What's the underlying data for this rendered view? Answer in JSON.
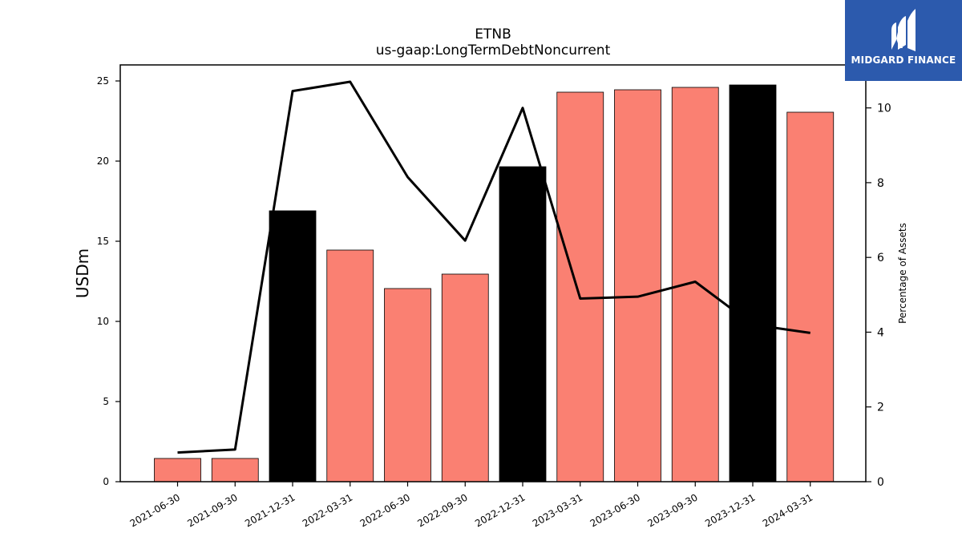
{
  "chart_data": {
    "type": "bar",
    "title": "ETNB",
    "subtitle": "us-gaap:LongTermDebtNoncurrent",
    "ylabel": "USDm",
    "y2label": "Percentage of Assets",
    "categories": [
      "2021-06-30",
      "2021-09-30",
      "2021-12-31",
      "2022-03-31",
      "2022-06-30",
      "2022-09-30",
      "2022-12-31",
      "2023-03-31",
      "2023-06-30",
      "2023-09-30",
      "2023-12-31",
      "2024-03-31"
    ],
    "series": [
      {
        "axis": "left",
        "kind": "bar",
        "values": [
          1.45,
          1.45,
          16.9,
          14.45,
          12.05,
          12.95,
          19.65,
          24.3,
          24.45,
          24.6,
          24.75,
          23.05
        ],
        "colors": [
          "#fa8072",
          "#fa8072",
          "#000000",
          "#fa8072",
          "#fa8072",
          "#fa8072",
          "#000000",
          "#fa8072",
          "#fa8072",
          "#fa8072",
          "#000000",
          "#fa8072"
        ]
      },
      {
        "axis": "right",
        "kind": "line",
        "color": "#000000",
        "values": [
          0.78,
          0.86,
          10.45,
          10.7,
          8.15,
          6.45,
          10.0,
          4.9,
          4.95,
          5.35,
          4.2,
          3.98
        ]
      }
    ],
    "ylim": [
      0,
      26
    ],
    "y2lim": [
      0,
      11.15
    ],
    "yticks": [
      0,
      5,
      10,
      15,
      20,
      25
    ],
    "y2ticks": [
      0,
      2,
      4,
      6,
      8,
      10
    ],
    "grid": false
  },
  "logo": {
    "text": "MIDGARD FINANCE",
    "bg": "#2c5aad",
    "icon": "midgard-m-icon"
  }
}
